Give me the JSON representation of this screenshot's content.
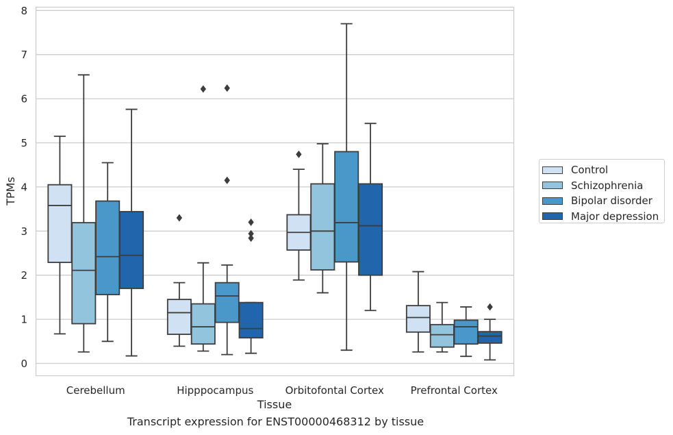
{
  "chart_data": {
    "type": "box",
    "caption": "Transcript expression for ENST00000468312 by tissue",
    "xlabel": "Tissue",
    "ylabel": "TPMs",
    "ylim": [
      -0.28,
      8.08
    ],
    "yticks": [
      0,
      1,
      2,
      3,
      4,
      5,
      6,
      7,
      8
    ],
    "grid": true,
    "legend_position": "right",
    "categories": [
      "Cerebellum",
      "Hipppocampus",
      "Orbitofontal Cortex",
      "Prefrontal Cortex"
    ],
    "series": [
      {
        "name": "Control",
        "color": "#cfe1f2",
        "boxes": [
          {
            "whislo": 0.67,
            "q1": 2.29,
            "med": 3.58,
            "q3": 4.05,
            "whishi": 5.15,
            "fliers": []
          },
          {
            "whislo": 0.39,
            "q1": 0.66,
            "med": 1.15,
            "q3": 1.45,
            "whishi": 1.83,
            "fliers": [
              3.3
            ]
          },
          {
            "whislo": 1.89,
            "q1": 2.57,
            "med": 2.97,
            "q3": 3.37,
            "whishi": 4.4,
            "fliers": [
              4.74
            ]
          },
          {
            "whislo": 0.26,
            "q1": 0.71,
            "med": 1.04,
            "q3": 1.31,
            "whishi": 2.08,
            "fliers": []
          }
        ]
      },
      {
        "name": "Schizophrenia",
        "color": "#93c4de",
        "boxes": [
          {
            "whislo": 0.26,
            "q1": 0.9,
            "med": 2.11,
            "q3": 3.19,
            "whishi": 6.54,
            "fliers": []
          },
          {
            "whislo": 0.28,
            "q1": 0.44,
            "med": 0.83,
            "q3": 1.35,
            "whishi": 2.28,
            "fliers": [
              6.22
            ]
          },
          {
            "whislo": 1.6,
            "q1": 2.12,
            "med": 3.0,
            "q3": 4.07,
            "whishi": 4.98,
            "fliers": []
          },
          {
            "whislo": 0.26,
            "q1": 0.37,
            "med": 0.65,
            "q3": 0.88,
            "whishi": 1.38,
            "fliers": []
          }
        ]
      },
      {
        "name": "Bipolar disorder",
        "color": "#4a98c9",
        "boxes": [
          {
            "whislo": 0.5,
            "q1": 1.56,
            "med": 2.42,
            "q3": 3.68,
            "whishi": 4.55,
            "fliers": []
          },
          {
            "whislo": 0.2,
            "q1": 0.93,
            "med": 1.53,
            "q3": 1.83,
            "whishi": 2.23,
            "fliers": [
              6.24,
              4.15
            ]
          },
          {
            "whislo": 0.3,
            "q1": 2.3,
            "med": 3.19,
            "q3": 4.8,
            "whishi": 7.7,
            "fliers": []
          },
          {
            "whislo": 0.16,
            "q1": 0.44,
            "med": 0.83,
            "q3": 0.98,
            "whishi": 1.28,
            "fliers": []
          }
        ]
      },
      {
        "name": "Major depression",
        "color": "#2166ac",
        "boxes": [
          {
            "whislo": 0.17,
            "q1": 1.7,
            "med": 2.45,
            "q3": 3.44,
            "whishi": 5.76,
            "fliers": []
          },
          {
            "whislo": 0.23,
            "q1": 0.58,
            "med": 0.79,
            "q3": 1.38,
            "whishi": 1.38,
            "fliers": [
              3.2,
              2.94,
              2.84
            ]
          },
          {
            "whislo": 1.2,
            "q1": 2.0,
            "med": 3.12,
            "q3": 4.07,
            "whishi": 5.44,
            "fliers": []
          },
          {
            "whislo": 0.08,
            "q1": 0.46,
            "med": 0.62,
            "q3": 0.72,
            "whishi": 1.0,
            "fliers": [
              1.28
            ]
          }
        ]
      }
    ]
  }
}
